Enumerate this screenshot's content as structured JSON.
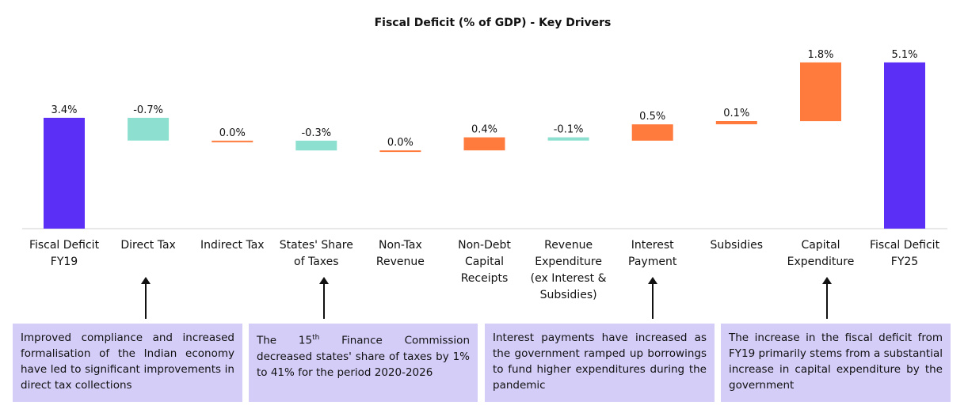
{
  "chart_data": {
    "type": "waterfall",
    "title": "Fiscal Deficit (% of GDP) - Key Drivers",
    "categories": [
      "Fiscal Deficit FY19",
      "Direct Tax",
      "Indirect Tax",
      "States' Share of Taxes",
      "Non-Tax Revenue",
      "Non-Debt Capital Receipts",
      "Revenue Expenditure (ex Interest & Subsidies)",
      "Interest Payment",
      "Subsidies",
      "Capital Expenditure",
      "Fiscal Deficit FY25"
    ],
    "values": [
      3.4,
      -0.7,
      0.0,
      -0.3,
      0.0,
      0.4,
      -0.1,
      0.5,
      0.1,
      1.8,
      5.1
    ],
    "value_labels": [
      "3.4%",
      "-0.7%",
      "0.0%",
      "-0.3%",
      "0.0%",
      "0.4%",
      "-0.1%",
      "0.5%",
      "0.1%",
      "1.8%",
      "5.1%"
    ],
    "bar_kind": [
      "total",
      "delta",
      "delta",
      "delta",
      "delta",
      "delta",
      "delta",
      "delta",
      "delta",
      "delta",
      "total"
    ],
    "colors": {
      "total": "#5b2ff5",
      "decrease": "#8de0d0",
      "increase": "#ff7a3d",
      "note_bg": "#d4cdf8"
    },
    "ylim": [
      0,
      5.1
    ],
    "grid": false
  },
  "annotations": [
    {
      "text": "Improved compliance and increased formalisation of the Indian economy have led to significant improvements in direct tax collections",
      "points_to": "Direct Tax"
    },
    {
      "text_before": "The 15",
      "sup": "th",
      "text_after": " Finance Commission decreased states' share of taxes by 1% to 41% for the period 2020-2026",
      "points_to": "States' Share of Taxes"
    },
    {
      "text": "Interest payments have increased as the government ramped up borrowings to fund higher expenditures during the pandemic",
      "points_to": "Interest Payment"
    },
    {
      "text": "The increase in the fiscal deficit from FY19 primarily stems from a substantial increase in capital expenditure by the government",
      "points_to": "Capital Expenditure"
    }
  ]
}
